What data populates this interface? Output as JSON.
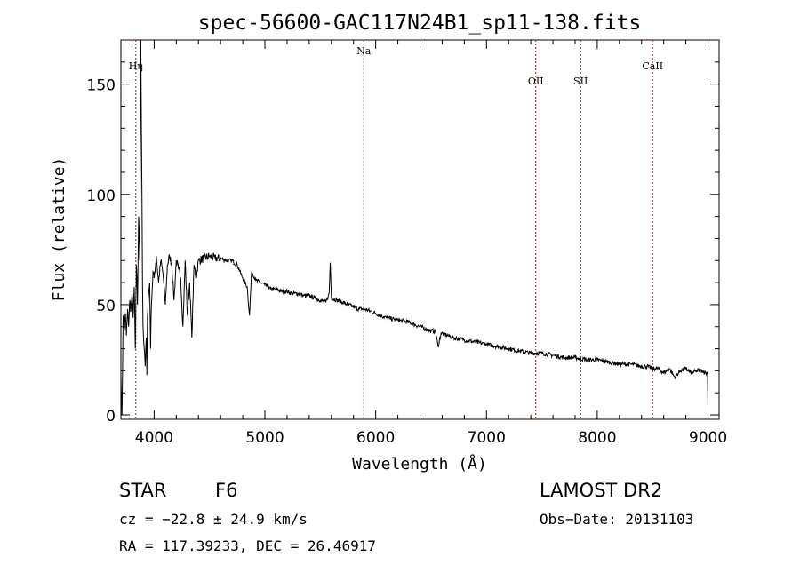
{
  "chart_data": {
    "type": "line",
    "title": "spec-56600-GAC117N24B1_sp11-138.fits",
    "xlabel": "Wavelength (Å)",
    "ylabel": "Flux (relative)",
    "xlim": [
      3700,
      9100
    ],
    "ylim": [
      -2,
      170
    ],
    "x_ticks": [
      4000,
      5000,
      6000,
      7000,
      8000,
      9000
    ],
    "y_ticks": [
      0,
      50,
      100,
      150
    ],
    "grid": false,
    "line_color": "#000000",
    "marker_color": "#8b1a1a",
    "lines": [
      {
        "label": "Hη",
        "wavelength": 3835
      },
      {
        "label": "Na",
        "wavelength": 5892
      },
      {
        "label": "OII",
        "wavelength": 7445
      },
      {
        "label": "SII",
        "wavelength": 7850
      },
      {
        "label": "CaII",
        "wavelength": 8500
      }
    ],
    "spectrum": {
      "wavelength": [
        3700,
        3710,
        3720,
        3730,
        3740,
        3750,
        3760,
        3770,
        3780,
        3790,
        3800,
        3810,
        3820,
        3830,
        3840,
        3850,
        3860,
        3870,
        3880,
        3885,
        3890,
        3895,
        3900,
        3910,
        3920,
        3930,
        3934,
        3940,
        3950,
        3960,
        3968,
        3975,
        3990,
        4000,
        4020,
        4040,
        4060,
        4080,
        4101,
        4120,
        4140,
        4160,
        4180,
        4200,
        4220,
        4240,
        4260,
        4280,
        4300,
        4320,
        4340,
        4360,
        4380,
        4400,
        4450,
        4500,
        4550,
        4600,
        4650,
        4700,
        4750,
        4800,
        4840,
        4861,
        4880,
        4920,
        4960,
        5000,
        5050,
        5100,
        5150,
        5200,
        5250,
        5300,
        5350,
        5400,
        5450,
        5500,
        5550,
        5580,
        5590,
        5600,
        5650,
        5700,
        5750,
        5800,
        5850,
        5900,
        5950,
        6000,
        6100,
        6200,
        6300,
        6400,
        6500,
        6540,
        6563,
        6590,
        6650,
        6700,
        6800,
        6900,
        7000,
        7100,
        7200,
        7300,
        7400,
        7500,
        7600,
        7700,
        7800,
        7900,
        8000,
        8100,
        8200,
        8300,
        8400,
        8450,
        8500,
        8550,
        8600,
        8650,
        8700,
        8750,
        8800,
        8850,
        8900,
        8950,
        8980,
        9000
      ],
      "flux": [
        18,
        0,
        45,
        38,
        46,
        36,
        48,
        40,
        52,
        47,
        55,
        44,
        58,
        30,
        68,
        50,
        90,
        70,
        171,
        130,
        100,
        60,
        40,
        30,
        22,
        35,
        18,
        45,
        55,
        60,
        30,
        50,
        65,
        62,
        72,
        60,
        70,
        64,
        50,
        68,
        72,
        68,
        52,
        70,
        66,
        62,
        40,
        70,
        45,
        60,
        35,
        68,
        62,
        70,
        71,
        72,
        71,
        71,
        70,
        70,
        68,
        62,
        58,
        45,
        65,
        61,
        60,
        59,
        57,
        57,
        56,
        56,
        55,
        55,
        54,
        54,
        53,
        52,
        51,
        55,
        69,
        53,
        52,
        51,
        50,
        49,
        48,
        48,
        47,
        46,
        44,
        43,
        42,
        40,
        38,
        38,
        31,
        37,
        36,
        35,
        34,
        33,
        32,
        31,
        30,
        29,
        28,
        28,
        27,
        26,
        26,
        25,
        25,
        24,
        23,
        23,
        22,
        22,
        21,
        21,
        19,
        21,
        17,
        20,
        21,
        19,
        20,
        20,
        19,
        19,
        2
      ]
    },
    "info": {
      "class_label": "STAR",
      "subclass": "F6",
      "survey": "LAMOST DR2",
      "redshift_text": "cz = −22.8 ± 24.9 km/s",
      "obs_date": "Obs−Date: 20131103",
      "coords_text": "RA = 117.39233, DEC =  26.46917"
    }
  }
}
